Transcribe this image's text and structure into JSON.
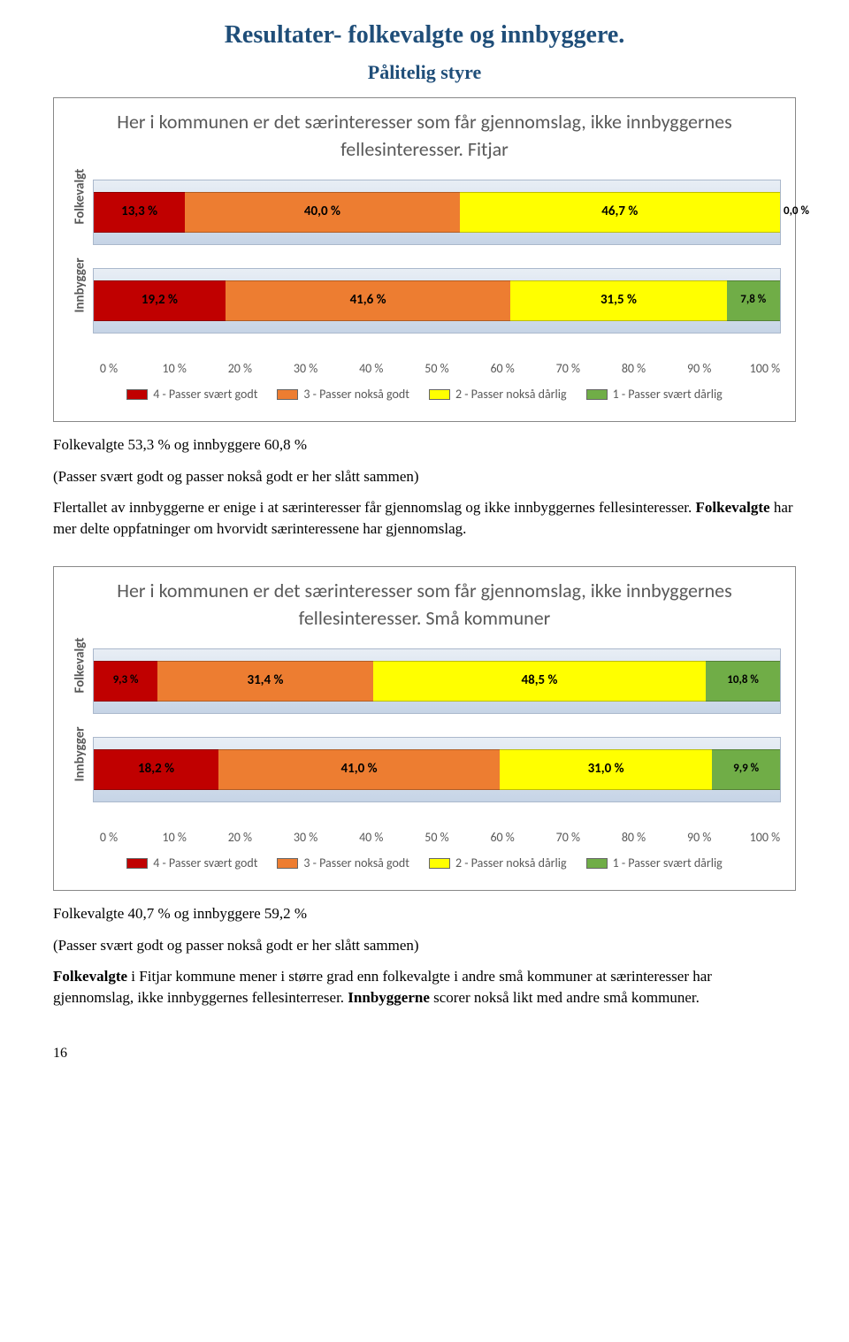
{
  "page_title": "Resultater- folkevalgte og innbyggere.",
  "subtitle": "Pålitelig styre",
  "legend": {
    "l4": "4 - Passer svært godt",
    "l3": "3 - Passer nokså godt",
    "l2": "2 - Passer nokså dårlig",
    "l1": "1 - Passer svært dårlig"
  },
  "colors": {
    "c4": "#c00000",
    "c3": "#ed7d31",
    "c2": "#ffff00",
    "c1": "#70ad47",
    "track_top": "#e8eef5",
    "track_bot": "#c6d4e6"
  },
  "xticks": [
    "0 %",
    "10 %",
    "20 %",
    "30 %",
    "40 %",
    "50 %",
    "60 %",
    "70 %",
    "80 %",
    "90 %",
    "100 %"
  ],
  "chart1": {
    "title": "Her i kommunen er det særinteresser som får gjennomslag, ikke innbyggernes fellesinteresser. Fitjar",
    "rows": [
      {
        "label": "Folkevalgt",
        "segs": [
          {
            "v": 13.3,
            "t": "13,3 %",
            "c": "c4"
          },
          {
            "v": 40.0,
            "t": "40,0 %",
            "c": "c3"
          },
          {
            "v": 46.7,
            "t": "46,7 %",
            "c": "c2"
          },
          {
            "v": 0.0,
            "t": "0,0 %",
            "c": "c1"
          }
        ]
      },
      {
        "label": "Innbygger",
        "segs": [
          {
            "v": 19.2,
            "t": "19,2 %",
            "c": "c4"
          },
          {
            "v": 41.6,
            "t": "41,6 %",
            "c": "c3"
          },
          {
            "v": 31.5,
            "t": "31,5 %",
            "c": "c2"
          },
          {
            "v": 7.8,
            "t": "7,8 %",
            "c": "c1"
          }
        ]
      }
    ]
  },
  "para1_a": "Folkevalgte 53,3 % og innbyggere 60,8 %",
  "para1_b": "(Passer svært godt og passer nokså godt er her slått sammen)",
  "para2": "Flertallet av innbyggerne er enige i at særinteresser får gjennomslag og ikke innbyggernes fellesinteresser. <b>Folkevalgte</b> har mer delte oppfatninger om hvorvidt særinteressene har gjennomslag.",
  "chart2": {
    "title": "Her i kommunen er det særinteresser som får gjennomslag, ikke innbyggernes fellesinteresser. Små kommuner",
    "rows": [
      {
        "label": "Folkevalgt",
        "segs": [
          {
            "v": 9.3,
            "t": "9,3 %",
            "c": "c4"
          },
          {
            "v": 31.4,
            "t": "31,4 %",
            "c": "c3"
          },
          {
            "v": 48.5,
            "t": "48,5 %",
            "c": "c2"
          },
          {
            "v": 10.8,
            "t": "10,8 %",
            "c": "c1"
          }
        ]
      },
      {
        "label": "Innbygger",
        "segs": [
          {
            "v": 18.2,
            "t": "18,2 %",
            "c": "c4"
          },
          {
            "v": 41.0,
            "t": "41,0 %",
            "c": "c3"
          },
          {
            "v": 31.0,
            "t": "31,0 %",
            "c": "c2"
          },
          {
            "v": 9.9,
            "t": "9,9 %",
            "c": "c1"
          }
        ]
      }
    ]
  },
  "para3_a": "Folkevalgte 40,7 % og innbyggere 59,2 %",
  "para3_b": "(Passer svært godt og passer nokså godt er her slått sammen)",
  "para4": "<b>Folkevalgte</b> i Fitjar kommune mener i større grad enn folkevalgte i andre små kommuner at særinteresser har gjennomslag, ikke innbyggernes fellesinterreser. <b>Innbyggerne</b> scorer nokså likt med andre små kommuner.",
  "page_number": "16"
}
